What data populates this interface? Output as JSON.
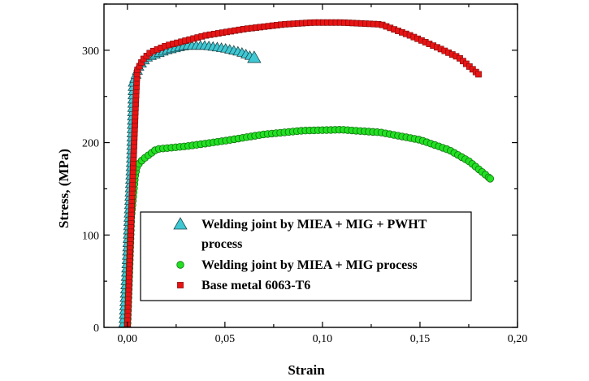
{
  "chart_data": {
    "type": "scatter",
    "title": "",
    "xlabel": "Strain",
    "ylabel": "Stress, (MPa)",
    "xlim": [
      -0.012,
      0.2
    ],
    "ylim": [
      0,
      350
    ],
    "x_ticks": [
      0.0,
      0.05,
      0.1,
      0.15,
      0.2
    ],
    "x_tick_labels": [
      "0,00",
      "0,05",
      "0,10",
      "0,15",
      "0,20"
    ],
    "y_ticks": [
      0,
      100,
      200,
      300
    ],
    "y_tick_labels": [
      "0",
      "100",
      "200",
      "300"
    ],
    "grid": false,
    "legend": {
      "position": "bottom-left",
      "entries": [
        {
          "line1": "Welding joint by MIEA + MIG + PWHT",
          "line2": "process"
        },
        {
          "line1": "Welding joint by MIEA + MIG process",
          "line2": ""
        },
        {
          "line1": "Base metal 6063-T6",
          "line2": ""
        }
      ]
    },
    "series": [
      {
        "name": "Welding joint by MIEA + MIG + PWHT process",
        "marker": "triangle",
        "color": "#3fc8d4",
        "anchors": [
          [
            -0.002,
            0
          ],
          [
            0.0,
            80
          ],
          [
            0.002,
            180
          ],
          [
            0.003,
            265
          ],
          [
            0.006,
            283
          ],
          [
            0.01,
            292
          ],
          [
            0.02,
            300
          ],
          [
            0.03,
            305
          ],
          [
            0.04,
            305
          ],
          [
            0.05,
            302
          ],
          [
            0.058,
            298
          ],
          [
            0.065,
            292
          ]
        ]
      },
      {
        "name": "Welding joint by MIEA + MIG process",
        "marker": "circle",
        "color": "#22e022",
        "anchors": [
          [
            0.0,
            0
          ],
          [
            0.002,
            120
          ],
          [
            0.004,
            165
          ],
          [
            0.005,
            175
          ],
          [
            0.008,
            182
          ],
          [
            0.015,
            193
          ],
          [
            0.03,
            196
          ],
          [
            0.05,
            202
          ],
          [
            0.07,
            209
          ],
          [
            0.09,
            213
          ],
          [
            0.11,
            214
          ],
          [
            0.13,
            211
          ],
          [
            0.15,
            203
          ],
          [
            0.165,
            192
          ],
          [
            0.175,
            180
          ],
          [
            0.182,
            168
          ],
          [
            0.186,
            161
          ]
        ]
      },
      {
        "name": "Base metal 6063-T6",
        "marker": "square",
        "color": "#e81414",
        "anchors": [
          [
            0.0,
            0
          ],
          [
            0.002,
            120
          ],
          [
            0.004,
            230
          ],
          [
            0.005,
            278
          ],
          [
            0.008,
            290
          ],
          [
            0.012,
            298
          ],
          [
            0.02,
            305
          ],
          [
            0.04,
            316
          ],
          [
            0.06,
            323
          ],
          [
            0.08,
            328
          ],
          [
            0.095,
            330
          ],
          [
            0.11,
            330
          ],
          [
            0.13,
            328
          ],
          [
            0.145,
            316
          ],
          [
            0.16,
            302
          ],
          [
            0.17,
            292
          ],
          [
            0.18,
            274
          ]
        ]
      }
    ]
  }
}
